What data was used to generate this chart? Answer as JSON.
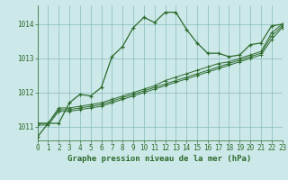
{
  "title": "Graphe pression niveau de la mer (hPa)",
  "bg_color": "#cce8e8",
  "grid_color": "#88bbbb",
  "line_color": "#2d6b2d",
  "xlim": [
    0,
    23
  ],
  "ylim": [
    1010.6,
    1014.55
  ],
  "yticks": [
    1011,
    1012,
    1013,
    1014
  ],
  "xticks": [
    0,
    1,
    2,
    3,
    4,
    5,
    6,
    7,
    8,
    9,
    10,
    11,
    12,
    13,
    14,
    15,
    16,
    17,
    18,
    19,
    20,
    21,
    22,
    23
  ],
  "series1": [
    1010.7,
    1011.1,
    1011.1,
    1011.7,
    1011.95,
    1011.9,
    1012.15,
    1013.05,
    1013.35,
    1013.9,
    1014.2,
    1014.05,
    1014.35,
    1014.35,
    1013.85,
    1013.45,
    1013.15,
    1013.15,
    1013.05,
    1013.1,
    1013.4,
    1013.45,
    1013.95,
    1014.0
  ],
  "series2": [
    1011.1,
    1011.1,
    1011.55,
    1011.55,
    1011.6,
    1011.65,
    1011.7,
    1011.8,
    1011.9,
    1012.0,
    1012.1,
    1012.2,
    1012.35,
    1012.45,
    1012.55,
    1012.65,
    1012.75,
    1012.85,
    1012.9,
    1013.0,
    1013.1,
    1013.2,
    1013.75,
    1014.0
  ],
  "series3": [
    1011.1,
    1011.1,
    1011.5,
    1011.5,
    1011.55,
    1011.6,
    1011.65,
    1011.75,
    1011.85,
    1011.95,
    1012.05,
    1012.15,
    1012.25,
    1012.35,
    1012.45,
    1012.55,
    1012.65,
    1012.75,
    1012.85,
    1012.95,
    1013.05,
    1013.15,
    1013.65,
    1013.95
  ],
  "series4": [
    1011.05,
    1011.05,
    1011.45,
    1011.45,
    1011.5,
    1011.55,
    1011.6,
    1011.7,
    1011.8,
    1011.9,
    1012.0,
    1012.1,
    1012.2,
    1012.3,
    1012.4,
    1012.5,
    1012.6,
    1012.7,
    1012.8,
    1012.9,
    1013.0,
    1013.1,
    1013.55,
    1013.9
  ],
  "title_fontsize": 6.5,
  "tick_fontsize": 5.5
}
